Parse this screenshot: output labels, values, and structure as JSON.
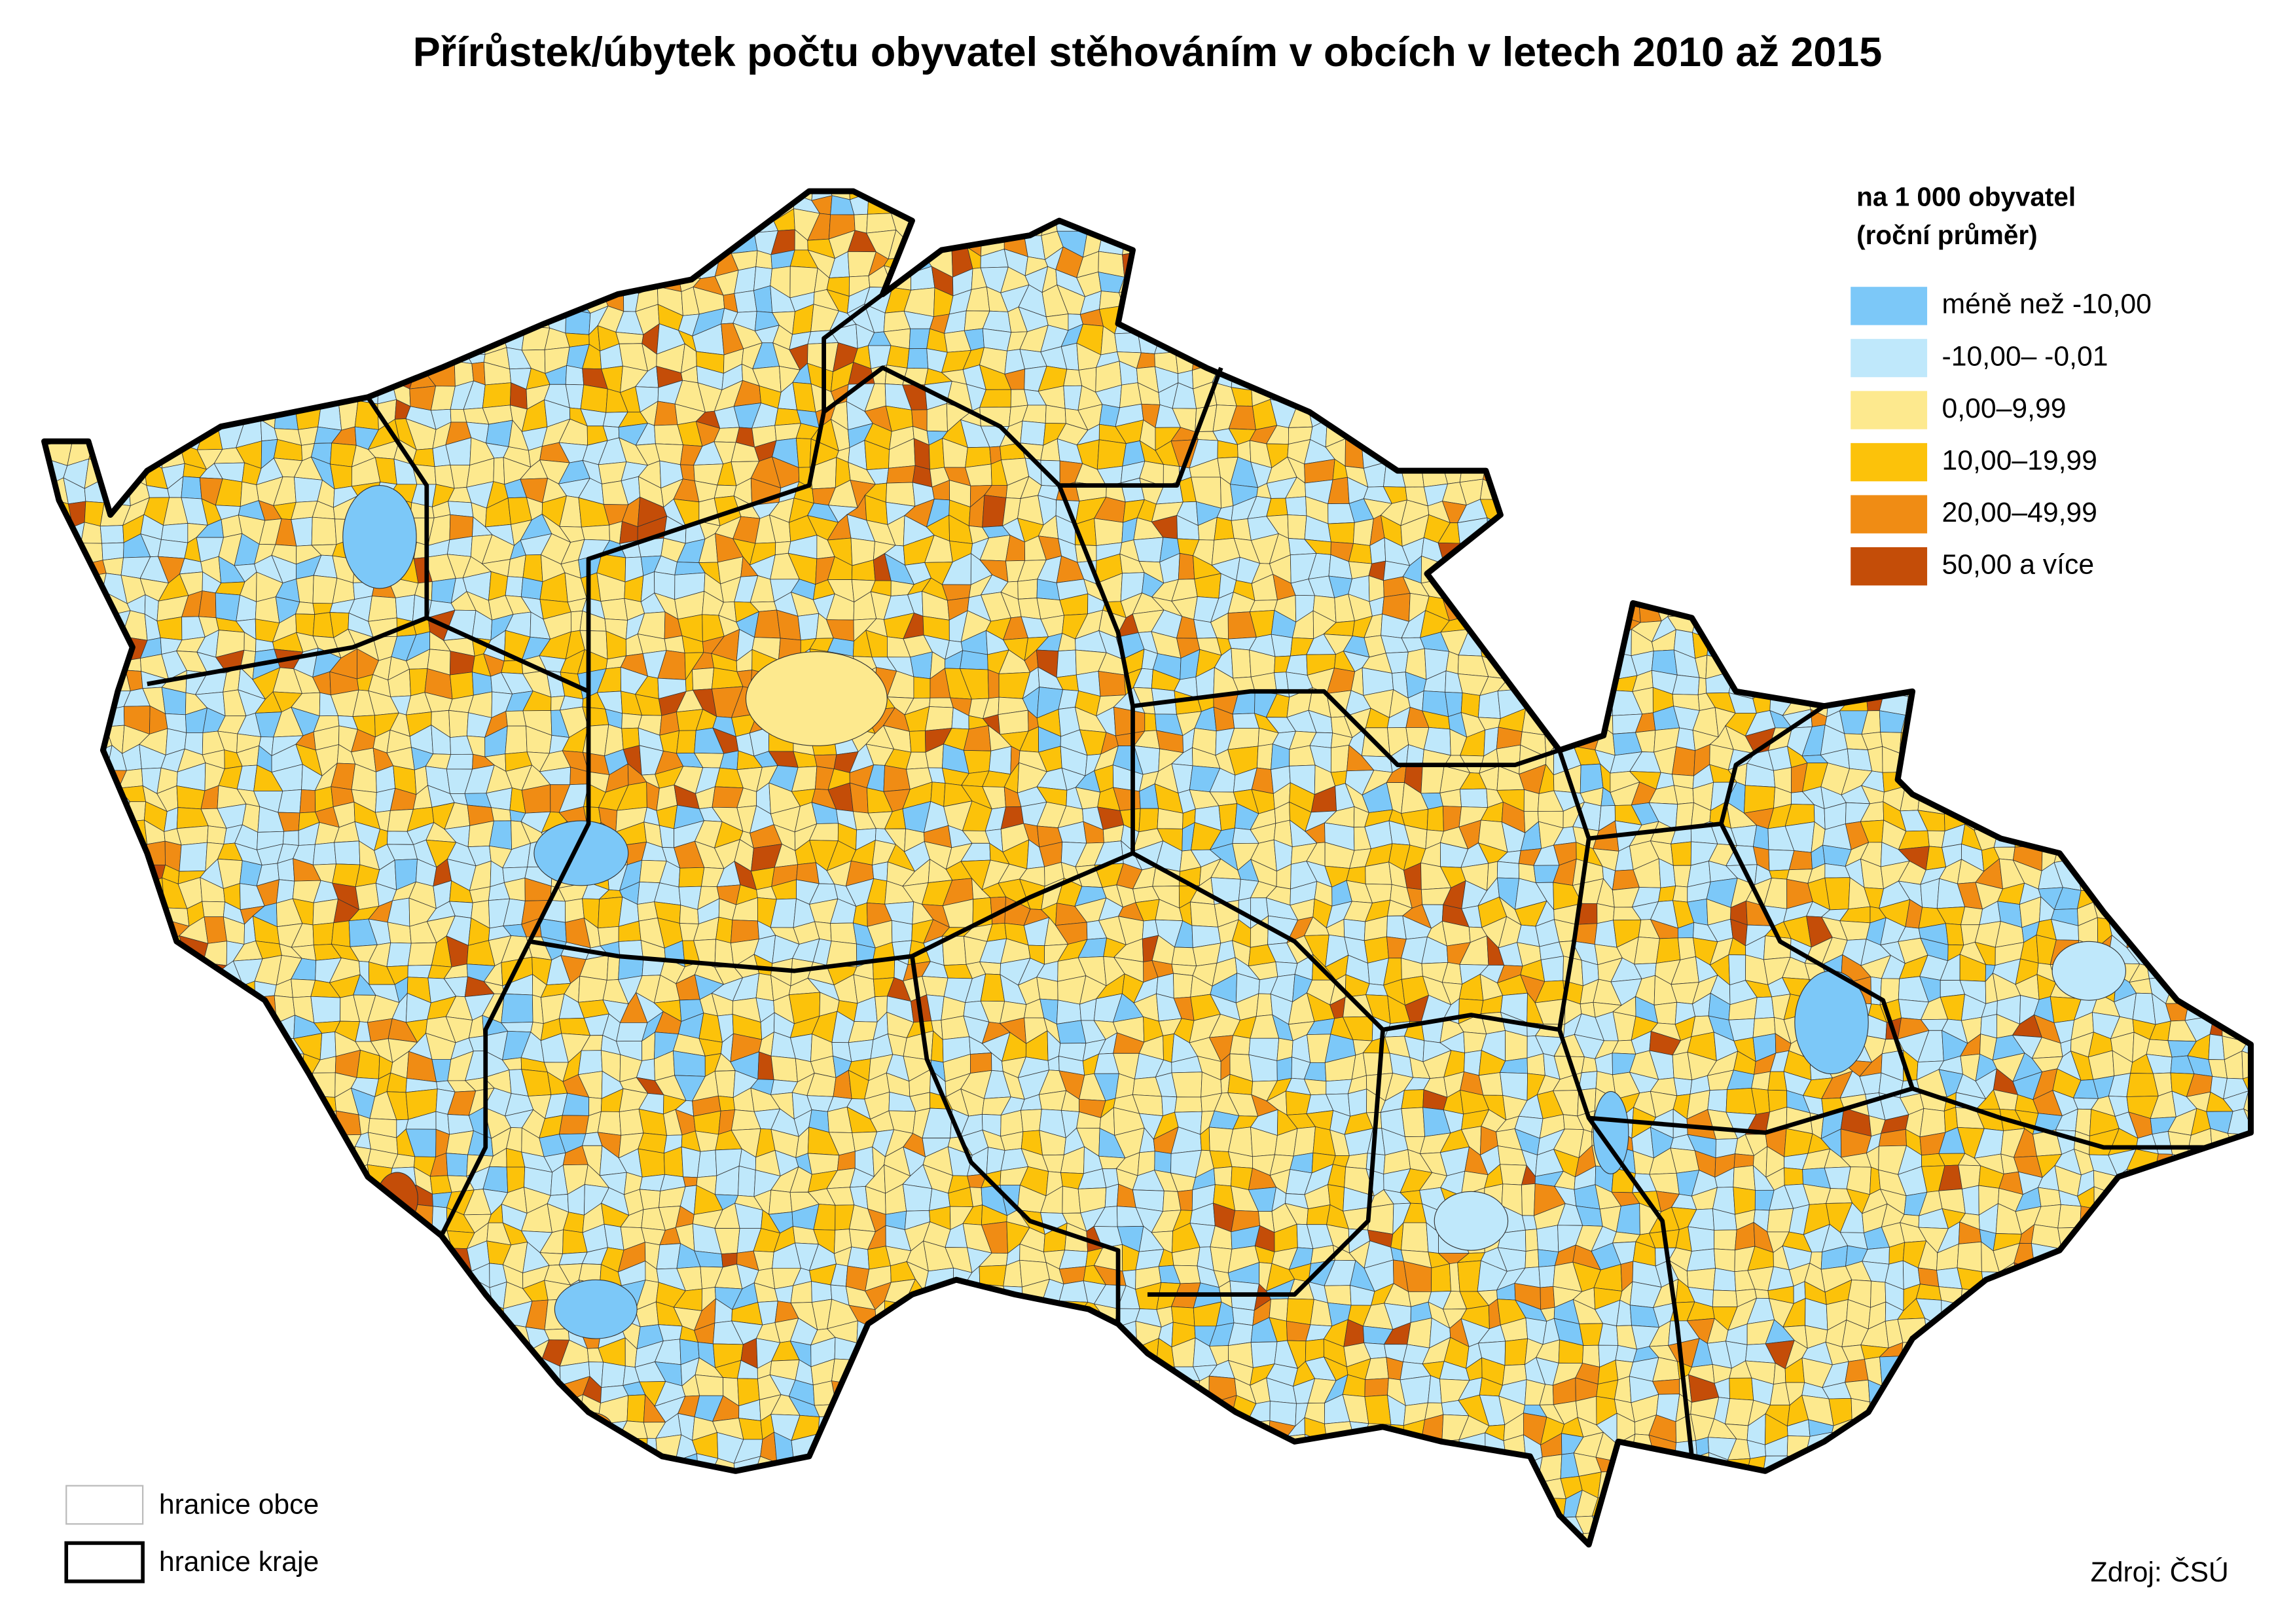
{
  "title": "Přírůstek/úbytek počtu obyvatel stěhováním v obcích v letech 2010 až 2015",
  "legend": {
    "title": [
      "na 1 000 obyvatel",
      "(roční průměr)"
    ],
    "items": [
      {
        "label": "méně než -10,00",
        "color": "#7cc8f8"
      },
      {
        "label": "-10,00– -0,01",
        "color": "#bfe8fb"
      },
      {
        "label": "0,00–9,99",
        "color": "#fde98e"
      },
      {
        "label": "10,00–19,99",
        "color": "#fcc20a"
      },
      {
        "label": "20,00–49,99",
        "color": "#f08c14"
      },
      {
        "label": "50,00 a více",
        "color": "#c44d08"
      }
    ]
  },
  "boundary_legend": [
    {
      "label": "hranice obce"
    },
    {
      "label": "hranice kraje"
    }
  ],
  "source": "Zdroj: ČSÚ"
}
